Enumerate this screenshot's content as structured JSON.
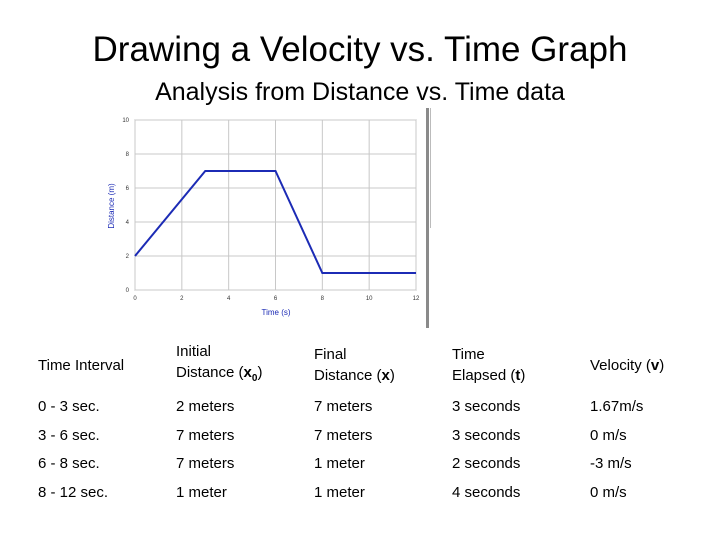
{
  "title": "Drawing a Velocity vs. Time Graph",
  "subtitle": "Analysis from Distance vs. Time data",
  "chart_data": {
    "type": "line",
    "xlabel": "Time (s)",
    "ylabel": "Distance (m)",
    "xlim": [
      0,
      12
    ],
    "ylim": [
      0,
      10
    ],
    "x_ticks": [
      "0",
      "2",
      "4",
      "6",
      "8",
      "10",
      "12"
    ],
    "y_ticks": [
      "0",
      "2",
      "4",
      "6",
      "8",
      "10"
    ],
    "grid": true,
    "series": [
      {
        "x": [
          0,
          3,
          6,
          8,
          12
        ],
        "y": [
          2,
          7,
          7,
          1,
          1
        ],
        "color": "#1c2bb5"
      }
    ]
  },
  "table": {
    "headers": [
      {
        "l1": "Time Interval",
        "l2": "",
        "sym": "",
        "sub": ""
      },
      {
        "l1": "Initial",
        "l2": "Distance (",
        "sym": "x",
        "sub": "0"
      },
      {
        "l1": "Final",
        "l2": "Distance (",
        "sym": "x",
        "sub": ""
      },
      {
        "l1": "Time",
        "l2": "Elapsed (",
        "sym": "t",
        "sub": ""
      },
      {
        "l1": "Velocity (",
        "l2": "",
        "sym": "v",
        "sub": ""
      }
    ],
    "rows": [
      [
        "0 - 3 sec.",
        "2 meters",
        "7 meters",
        "3 seconds",
        "1.67m/s"
      ],
      [
        "3 - 6 sec.",
        "7 meters",
        "7 meters",
        "3 seconds",
        "0 m/s"
      ],
      [
        "6 - 8 sec.",
        "7 meters",
        "1 meter",
        "2 seconds",
        "-3 m/s"
      ],
      [
        "8 - 12 sec.",
        "1 meter",
        "1 meter",
        "4 seconds",
        "0 m/s"
      ]
    ]
  }
}
